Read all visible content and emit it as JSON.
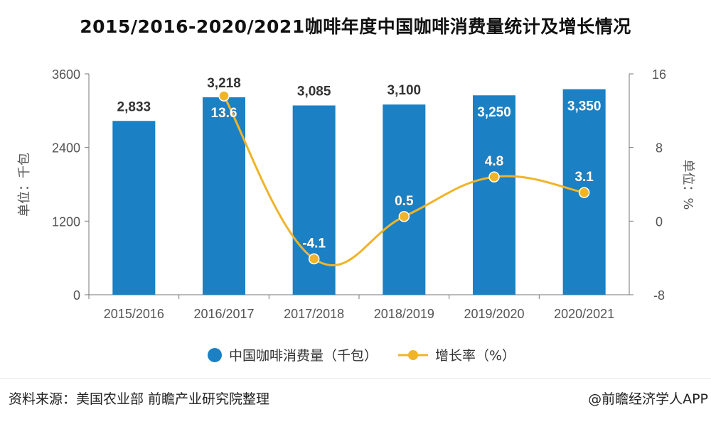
{
  "title": "2015/2016-2020/2021咖啡年度中国咖啡消费量统计及增长情况",
  "source": "资料来源：美国农业部 前瞻产业研究院整理",
  "credit": "@前瞻经济学人APP",
  "colors": {
    "bar": "#1b80c4",
    "line": "#f0b429",
    "axis": "#555555",
    "label": "#333333"
  },
  "chart_data": {
    "type": "bar",
    "title": "2015/2016-2020/2021咖啡年度中国咖啡消费量统计及增长情况",
    "categories": [
      "2015/2016",
      "2016/2017",
      "2017/2018",
      "2018/2019",
      "2019/2020",
      "2020/2021"
    ],
    "series": [
      {
        "name": "中国咖啡消费量（千包）",
        "type": "bar",
        "axis": "left",
        "values": [
          2833,
          3218,
          3085,
          3100,
          3250,
          3350
        ],
        "labels": [
          "2,833",
          "3,218",
          "3,085",
          "3,100",
          "3,250",
          "3,350"
        ]
      },
      {
        "name": "增长率（%）",
        "type": "line",
        "axis": "right",
        "values": [
          null,
          13.6,
          -4.1,
          0.5,
          4.8,
          3.1
        ],
        "labels": [
          "",
          "13.6",
          "-4.1",
          "0.5",
          "4.8",
          "3.1"
        ]
      }
    ],
    "ylabel_left": "单位：千包",
    "ylabel_right": "单位：%",
    "ylim_left": [
      0,
      3600
    ],
    "ylim_right": [
      -8,
      16
    ],
    "yticks_left": [
      "0",
      "1200",
      "2400",
      "3600"
    ],
    "yticks_right": [
      "-8",
      "0",
      "8",
      "16"
    ],
    "grid": false,
    "legend": "bottom"
  }
}
